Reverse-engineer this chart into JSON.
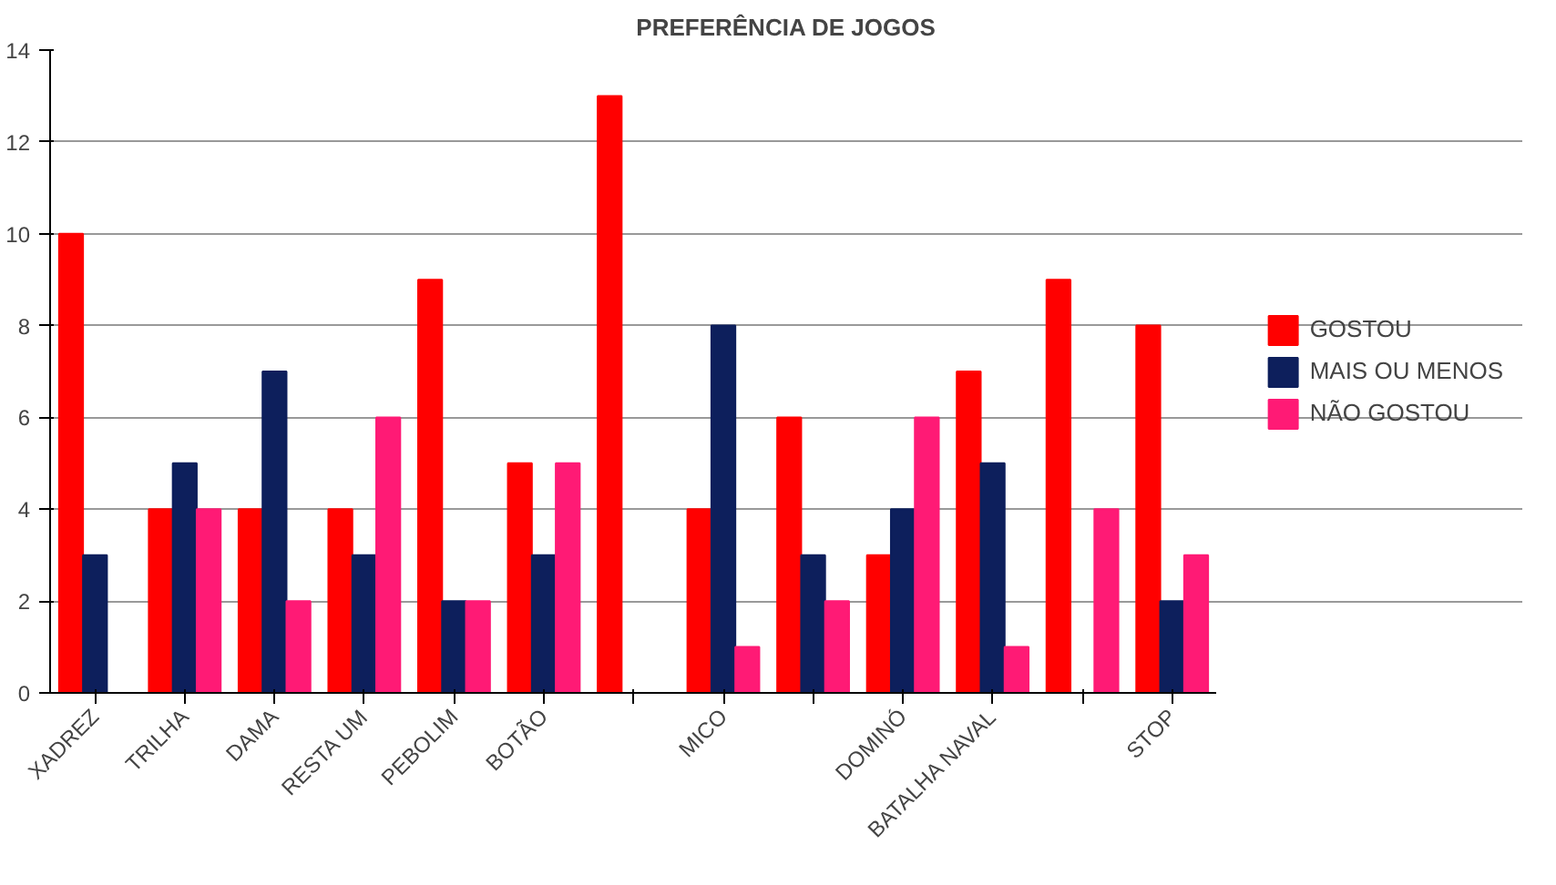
{
  "chart_data": {
    "type": "bar",
    "title": "PREFERÊNCIA DE JOGOS",
    "categories": [
      "XADREZ",
      "TRILHA",
      "DAMA",
      "RESTA UM",
      "PEBOLIM",
      "BOTÃO",
      null,
      "MICO",
      null,
      "DOMINÓ",
      "BATALHA NAVAL",
      null,
      "STOP"
    ],
    "series": [
      {
        "name": "GOSTOU",
        "color": "#ff0000",
        "values": [
          10,
          4,
          4,
          4,
          9,
          5,
          13,
          4,
          6,
          3,
          7,
          9,
          8
        ]
      },
      {
        "name": "MAIS OU MENOS",
        "color": "#0d1f5c",
        "values": [
          3,
          5,
          7,
          3,
          2,
          3,
          0,
          8,
          3,
          4,
          5,
          0,
          2
        ]
      },
      {
        "name": "NÃO GOSTOU",
        "color": "#ff1a75",
        "values": [
          0,
          4,
          2,
          6,
          2,
          5,
          0,
          1,
          2,
          6,
          1,
          4,
          3
        ]
      }
    ],
    "ylim": [
      0,
      14
    ],
    "yticks": [
      0,
      2,
      4,
      6,
      8,
      10,
      12,
      14
    ],
    "grid": "y",
    "legend": "right"
  }
}
